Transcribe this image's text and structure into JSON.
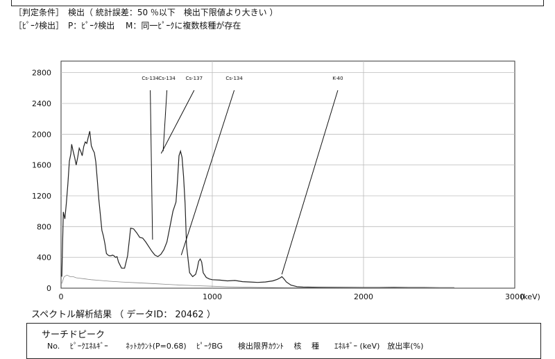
{
  "conditions": {
    "judgement": "［判定条件］　検出（ 統計誤差：50 ％以下　検出下限値より大きい ）",
    "peak_detection": "［ﾋﾟｰｸ検出］　P：ﾋﾟｰｸ検出　 M：同一ﾋﾟｰｸに複数核種が存在"
  },
  "chart_data": {
    "type": "line",
    "xlabel": "(keV)",
    "ylabel": "",
    "xlim": [
      0,
      3000
    ],
    "ylim": [
      0,
      2950
    ],
    "x_ticks": [
      0,
      1000,
      2000,
      3000
    ],
    "y_ticks": [
      0,
      400,
      800,
      1200,
      1600,
      2000,
      2400,
      2800
    ],
    "grid": true,
    "series": [
      {
        "color": "#222222",
        "points": [
          [
            5,
            150
          ],
          [
            15,
            990
          ],
          [
            25,
            900
          ],
          [
            35,
            1100
          ],
          [
            45,
            1350
          ],
          [
            55,
            1650
          ],
          [
            65,
            1750
          ],
          [
            70,
            1870
          ],
          [
            80,
            1780
          ],
          [
            90,
            1700
          ],
          [
            100,
            1600
          ],
          [
            110,
            1700
          ],
          [
            120,
            1820
          ],
          [
            130,
            1780
          ],
          [
            140,
            1720
          ],
          [
            150,
            1840
          ],
          [
            160,
            1900
          ],
          [
            170,
            1880
          ],
          [
            180,
            1960
          ],
          [
            190,
            2040
          ],
          [
            200,
            1850
          ],
          [
            210,
            1800
          ],
          [
            220,
            1760
          ],
          [
            230,
            1640
          ],
          [
            240,
            1400
          ],
          [
            250,
            1150
          ],
          [
            260,
            950
          ],
          [
            270,
            750
          ],
          [
            280,
            680
          ],
          [
            290,
            580
          ],
          [
            300,
            450
          ],
          [
            310,
            430
          ],
          [
            320,
            420
          ],
          [
            330,
            420
          ],
          [
            340,
            430
          ],
          [
            350,
            420
          ],
          [
            360,
            400
          ],
          [
            370,
            410
          ],
          [
            380,
            340
          ],
          [
            390,
            300
          ],
          [
            400,
            260
          ],
          [
            420,
            260
          ],
          [
            440,
            420
          ],
          [
            460,
            780
          ],
          [
            480,
            770
          ],
          [
            500,
            720
          ],
          [
            520,
            660
          ],
          [
            540,
            650
          ],
          [
            560,
            600
          ],
          [
            580,
            540
          ],
          [
            600,
            480
          ],
          [
            620,
            430
          ],
          [
            640,
            410
          ],
          [
            660,
            440
          ],
          [
            680,
            500
          ],
          [
            700,
            600
          ],
          [
            720,
            800
          ],
          [
            740,
            1000
          ],
          [
            760,
            1120
          ],
          [
            770,
            1400
          ],
          [
            780,
            1720
          ],
          [
            790,
            1780
          ],
          [
            800,
            1700
          ],
          [
            810,
            1450
          ],
          [
            820,
            1100
          ],
          [
            830,
            550
          ],
          [
            850,
            200
          ],
          [
            870,
            150
          ],
          [
            890,
            180
          ],
          [
            900,
            250
          ],
          [
            910,
            350
          ],
          [
            920,
            380
          ],
          [
            930,
            340
          ],
          [
            940,
            200
          ],
          [
            960,
            140
          ],
          [
            980,
            120
          ],
          [
            1000,
            110
          ],
          [
            1050,
            105
          ],
          [
            1100,
            95
          ],
          [
            1150,
            100
          ],
          [
            1200,
            85
          ],
          [
            1250,
            80
          ],
          [
            1300,
            75
          ],
          [
            1350,
            80
          ],
          [
            1400,
            95
          ],
          [
            1430,
            115
          ],
          [
            1450,
            135
          ],
          [
            1460,
            150
          ],
          [
            1470,
            130
          ],
          [
            1490,
            80
          ],
          [
            1520,
            40
          ],
          [
            1560,
            20
          ],
          [
            1600,
            15
          ],
          [
            1700,
            12
          ],
          [
            1800,
            10
          ],
          [
            2000,
            8
          ],
          [
            2100,
            8
          ],
          [
            2200,
            10
          ],
          [
            2300,
            8
          ],
          [
            2400,
            8
          ],
          [
            2500,
            6
          ],
          [
            2600,
            6
          ]
        ]
      },
      {
        "color": "#888888",
        "points": [
          [
            5,
            60
          ],
          [
            20,
            150
          ],
          [
            40,
            170
          ],
          [
            60,
            150
          ],
          [
            80,
            150
          ],
          [
            100,
            135
          ],
          [
            120,
            130
          ],
          [
            160,
            120
          ],
          [
            200,
            110
          ],
          [
            260,
            100
          ],
          [
            320,
            90
          ],
          [
            400,
            80
          ],
          [
            500,
            70
          ],
          [
            600,
            60
          ],
          [
            700,
            50
          ],
          [
            800,
            40
          ],
          [
            900,
            32
          ],
          [
            1000,
            25
          ],
          [
            1100,
            18
          ],
          [
            1200,
            14
          ],
          [
            1300,
            10
          ],
          [
            1400,
            8
          ],
          [
            1500,
            6
          ],
          [
            1700,
            5
          ],
          [
            2000,
            4
          ],
          [
            2600,
            3
          ]
        ]
      }
    ],
    "annotations": [
      {
        "label": "Cs-134",
        "peak": [
          605,
          630
        ],
        "label_x": 590
      },
      {
        "label": "Cs-134",
        "peak": [
          675,
          1780
        ],
        "label_x": 700
      },
      {
        "label": "Cs-137",
        "peak": [
          662,
          1750
        ],
        "label_x": 880
      },
      {
        "label": "Cs-134",
        "peak": [
          795,
          430
        ],
        "label_x": 1145
      },
      {
        "label": "K-40",
        "peak": [
          1460,
          180
        ],
        "label_x": 1830
      }
    ]
  },
  "results": {
    "title": "スペクトル解析結果 （ データID： 20462 ）",
    "search_title": "サーチドピーク",
    "columns": "No.　 ﾋﾟｰｸｴﾈﾙｷﾞｰ　　 ﾈｯﾄｶｳﾝﾄ(P=0.68)　 ﾋﾟｰｸBG　　検出限界ｶｳﾝﾄ　 核　 種　　ｴﾈﾙｷﾞｰ (keV)　放出率(%)"
  }
}
